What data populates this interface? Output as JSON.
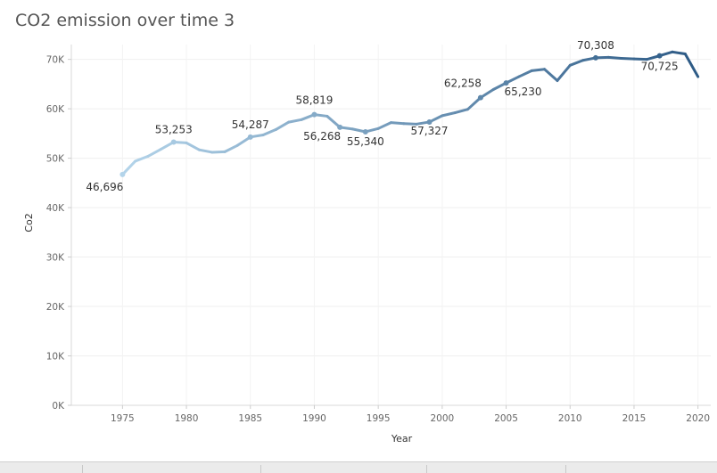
{
  "title": "CO2 emission over time 3",
  "chart_data": {
    "type": "line",
    "xlabel": "Year",
    "ylabel": "Co2",
    "xlim": [
      1971,
      2021
    ],
    "ylim": [
      0,
      73000
    ],
    "x_ticks": [
      1975,
      1980,
      1985,
      1990,
      1995,
      2000,
      2005,
      2010,
      2015,
      2020
    ],
    "y_ticks": [
      0,
      10000,
      20000,
      30000,
      40000,
      50000,
      60000,
      70000
    ],
    "y_tick_labels": [
      "0K",
      "10K",
      "20K",
      "30K",
      "40K",
      "50K",
      "60K",
      "70K"
    ],
    "grid": true,
    "series": [
      {
        "x": [
          1975,
          1976,
          1977,
          1978,
          1979,
          1980,
          1981,
          1982,
          1983,
          1984,
          1985,
          1986,
          1987,
          1988,
          1989,
          1990,
          1991,
          1992,
          1993,
          1994,
          1995,
          1996,
          1997,
          1998,
          1999,
          2000,
          2001,
          2002,
          2003,
          2004,
          2005,
          2006,
          2007,
          2008,
          2009,
          2010,
          2011,
          2012,
          2013,
          2014,
          2015,
          2016,
          2017,
          2018,
          2019,
          2020
        ],
        "y": [
          46696,
          49400,
          50400,
          51800,
          53253,
          53100,
          51700,
          51200,
          51300,
          52600,
          54287,
          54700,
          55800,
          57300,
          57800,
          58819,
          58500,
          56268,
          55900,
          55340,
          56000,
          57200,
          57000,
          56900,
          57327,
          58600,
          59200,
          59900,
          62258,
          63900,
          65230,
          66500,
          67700,
          68000,
          65700,
          68800,
          69800,
          70308,
          70400,
          70200,
          70100,
          70000,
          70725,
          71500,
          71100,
          66500
        ]
      }
    ],
    "color_scale": [
      "#b3d4ea",
      "#2c5a85"
    ],
    "annotations": [
      {
        "x": 1975,
        "y": 46696,
        "text": "46,696"
      },
      {
        "x": 1979,
        "y": 53253,
        "text": "53,253"
      },
      {
        "x": 1985,
        "y": 54287,
        "text": "54,287"
      },
      {
        "x": 1990,
        "y": 58819,
        "text": "58,819"
      },
      {
        "x": 1992,
        "y": 56268,
        "text": "56,268"
      },
      {
        "x": 1994,
        "y": 55340,
        "text": "55,340"
      },
      {
        "x": 1999,
        "y": 57327,
        "text": "57,327"
      },
      {
        "x": 2003,
        "y": 62258,
        "text": "62,258"
      },
      {
        "x": 2005,
        "y": 65230,
        "text": "65,230"
      },
      {
        "x": 2012,
        "y": 70308,
        "text": "70,308"
      },
      {
        "x": 2017,
        "y": 70725,
        "text": "70,725"
      }
    ]
  }
}
